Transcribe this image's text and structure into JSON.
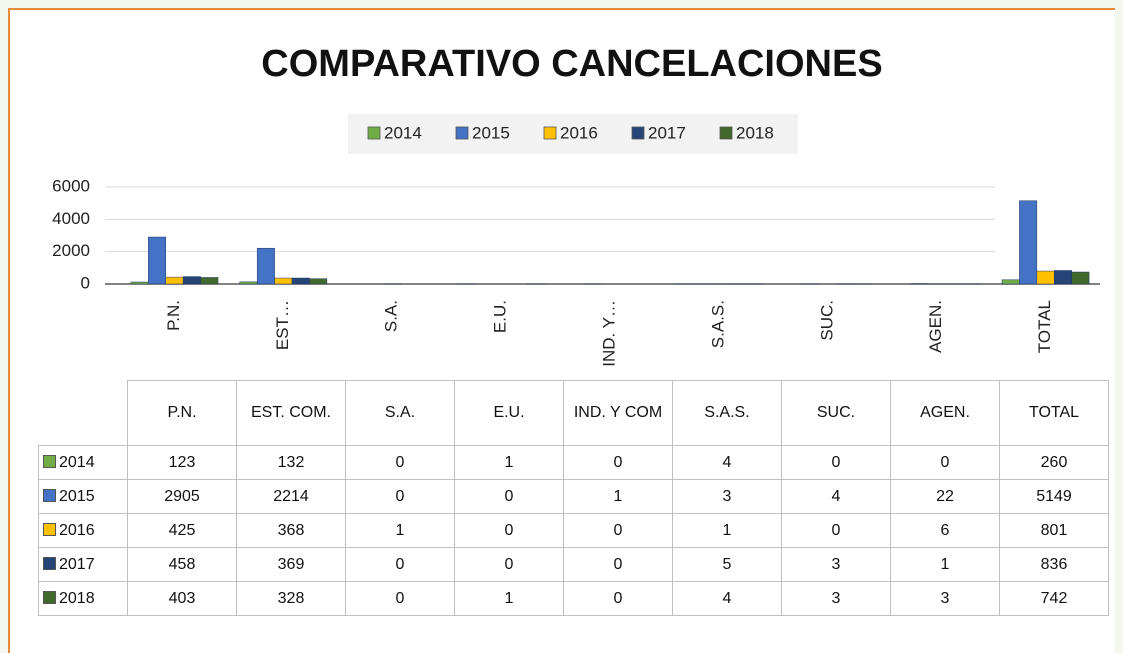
{
  "chart_data": {
    "type": "bar",
    "title": "COMPARATIVO CANCELACIONES",
    "categories": [
      "P.N.",
      "EST…",
      "S.A.",
      "E.U.",
      "IND. Y…",
      "S.A.S.",
      "SUC.",
      "AGEN.",
      "TOTAL"
    ],
    "series": [
      {
        "name": "2014",
        "color": "#70ad47",
        "values": [
          123,
          132,
          0,
          1,
          0,
          4,
          0,
          0,
          260
        ]
      },
      {
        "name": "2015",
        "color": "#4472c4",
        "values": [
          2905,
          2214,
          0,
          0,
          1,
          3,
          4,
          22,
          5149
        ]
      },
      {
        "name": "2016",
        "color": "#ffc000",
        "values": [
          425,
          368,
          1,
          0,
          0,
          1,
          0,
          6,
          801
        ]
      },
      {
        "name": "2017",
        "color": "#264478",
        "values": [
          458,
          369,
          0,
          0,
          0,
          5,
          3,
          1,
          836
        ]
      },
      {
        "name": "2018",
        "color": "#43682b",
        "values": [
          403,
          328,
          0,
          1,
          0,
          4,
          3,
          3,
          742
        ]
      }
    ],
    "ylim": [
      0,
      6000
    ],
    "yticks": [
      0,
      2000,
      4000,
      6000
    ],
    "grid": true,
    "legend": "top",
    "data_table": {
      "columns": [
        "P.N.",
        "EST. COM.",
        "S.A.",
        "E.U.",
        "IND. Y COM",
        "S.A.S.",
        "SUC.",
        "AGEN.",
        "TOTAL"
      ]
    }
  }
}
